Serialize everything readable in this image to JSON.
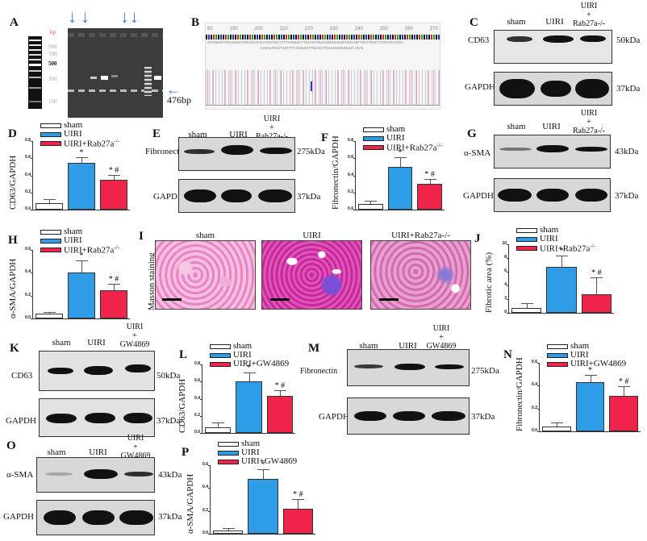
{
  "colors": {
    "sham": "#ffffff",
    "uiri": "#2e9ce6",
    "treat": "#f0234a",
    "arrow": "#4a7bc8",
    "bp_label": "#e0409a"
  },
  "panelA": {
    "label": "A",
    "ladder_unit": "bp",
    "ladder_ticks": [
      "900",
      "700",
      "500",
      "300",
      "100"
    ],
    "band_annotation": "476bp"
  },
  "panelB": {
    "label": "B",
    "ruler": [
      "82",
      "190",
      "200",
      "210",
      "220",
      "230",
      "240",
      "250",
      "260",
      "270"
    ],
    "sequence_top": "GCTGGGATTGCAGGCATGCACCACCATGCCTGCTTTTACGGGCTTGCACATGAAAGGAGAAGGTGACAGTTGCTTCACTTGACTCCTGCC",
    "sequence_bottom": "CACCATGCCTGCTTTTACGGGCTTGCACATGAAAGGAGAAdel/0/0"
  },
  "panelC": {
    "label": "C",
    "lanes": [
      "sham",
      "UIRI",
      "UIRI\n+\nRab27a-/-"
    ],
    "rows": [
      {
        "name": "CD63",
        "kda": "50kDa"
      },
      {
        "name": "GAPDH",
        "kda": "37kDa"
      }
    ]
  },
  "panelE": {
    "label": "E",
    "lanes": [
      "sham",
      "UIRI",
      "UIRI\n+\nRab27a-/-"
    ],
    "rows": [
      {
        "name": "Fibronectin",
        "kda": "275kDa"
      },
      {
        "name": "GAPDH",
        "kda": "37kDa"
      }
    ]
  },
  "panelG": {
    "label": "G",
    "lanes": [
      "sham",
      "UIRI",
      "UIRI\n+\nRab27a-/-"
    ],
    "rows": [
      {
        "name": "α-SMA",
        "kda": "43kDa"
      },
      {
        "name": "GAPDH",
        "kda": "37kDa"
      }
    ]
  },
  "panelI": {
    "label": "I",
    "row_label": "Masson staining",
    "images": [
      "sham",
      "UIRI",
      "UIRI+Rab27a-/-"
    ]
  },
  "panelK": {
    "label": "K",
    "lanes": [
      "sham",
      "UIRI",
      "UIRI\n+\nGW4869"
    ],
    "rows": [
      {
        "name": "CD63",
        "kda": "50kDa"
      },
      {
        "name": "GAPDH",
        "kda": "37kDa"
      }
    ]
  },
  "panelM": {
    "label": "M",
    "lanes": [
      "sham",
      "UIRI",
      "UIRI\n+\nGW4869"
    ],
    "rows": [
      {
        "name": "Fibronectin",
        "kda": "275kDa"
      },
      {
        "name": "GAPDH",
        "kda": "37kDa"
      }
    ]
  },
  "panelO": {
    "label": "O",
    "lanes": [
      "sham",
      "UIRI",
      "UIRI\n+\nGW4869"
    ],
    "rows": [
      {
        "name": "α-SMA",
        "kda": "43kDa"
      },
      {
        "name": "GAPDH",
        "kda": "37kDa"
      }
    ]
  },
  "chart_data": [
    {
      "panel": "D",
      "type": "bar",
      "categories": [
        "sham",
        "UIRI",
        "UIRI+Rab27a-/-"
      ],
      "values": [
        0.08,
        0.55,
        0.35
      ],
      "errors": [
        0.03,
        0.05,
        0.05
      ],
      "annotations": [
        "",
        "*",
        "* #"
      ],
      "ylabel": "CD63/GAPDH",
      "ylim": [
        0,
        0.8
      ],
      "yticks": [
        "0.0",
        "0.2",
        "0.4",
        "0.6",
        "0.8"
      ],
      "legend": [
        "sham",
        "UIRI",
        "UIRI+Rab27a-/-"
      ],
      "legend_position": "top"
    },
    {
      "panel": "F",
      "type": "bar",
      "categories": [
        "sham",
        "UIRI",
        "UIRI+Rab27a-/-"
      ],
      "values": [
        0.07,
        0.5,
        0.3
      ],
      "errors": [
        0.02,
        0.1,
        0.05
      ],
      "annotations": [
        "",
        "*",
        "* #"
      ],
      "ylabel": "Fibronectin/GAPDH",
      "ylim": [
        0,
        0.8
      ],
      "yticks": [
        "0.0",
        "0.2",
        "0.4",
        "0.6",
        "0.8"
      ],
      "legend": [
        "sham",
        "UIRI",
        "UIRI+Rab27a-/-"
      ],
      "legend_position": "top"
    },
    {
      "panel": "H",
      "type": "bar",
      "categories": [
        "sham",
        "UIRI",
        "UIRI+Rab27a-/-"
      ],
      "values": [
        0.04,
        0.4,
        0.25
      ],
      "errors": [
        0.01,
        0.1,
        0.05
      ],
      "annotations": [
        "",
        "*",
        "* #"
      ],
      "ylabel": "α-SMA/GAPDH",
      "ylim": [
        0,
        0.6
      ],
      "yticks": [
        "0.0",
        "0.2",
        "0.4",
        "0.6"
      ],
      "legend": [
        "sham",
        "UIRI",
        "UIRI+Rab27a-/-"
      ],
      "legend_position": "top"
    },
    {
      "panel": "J",
      "type": "bar",
      "categories": [
        "sham",
        "UIRI",
        "UIRI+Rab27a-/-"
      ],
      "values": [
        0.7,
        6.7,
        2.7
      ],
      "errors": [
        0.6,
        1.5,
        2.4
      ],
      "annotations": [
        "",
        "*",
        "* #"
      ],
      "ylabel": "Fibrotic area (%)",
      "ylim": [
        0,
        10
      ],
      "yticks": [
        "0",
        "2",
        "4",
        "6",
        "8",
        "10"
      ],
      "legend": [
        "sham",
        "UIRI",
        "UIRI+Rab27a-/-"
      ],
      "legend_position": "top"
    },
    {
      "panel": "L",
      "type": "bar",
      "categories": [
        "sham",
        "UIRI",
        "UIRI+GW4869"
      ],
      "values": [
        0.07,
        0.6,
        0.43
      ],
      "errors": [
        0.04,
        0.1,
        0.06
      ],
      "annotations": [
        "",
        "*",
        "* #"
      ],
      "ylabel": "CD63/GAPDH",
      "ylim": [
        0,
        0.8
      ],
      "yticks": [
        "0.0",
        "0.2",
        "0.4",
        "0.6",
        "0.8"
      ],
      "legend": [
        "sham",
        "UIRI",
        "UIRI+GW4869"
      ],
      "legend_position": "top"
    },
    {
      "panel": "N",
      "type": "bar",
      "categories": [
        "sham",
        "UIRI",
        "UIRI+GW4869"
      ],
      "values": [
        0.04,
        0.43,
        0.31
      ],
      "errors": [
        0.03,
        0.06,
        0.08
      ],
      "annotations": [
        "",
        "*",
        "* #"
      ],
      "ylabel": "Fibronectin/GAPDH",
      "ylim": [
        0,
        0.6
      ],
      "yticks": [
        "0.0",
        "0.2",
        "0.4",
        "0.6"
      ],
      "legend": [
        "sham",
        "UIRI",
        "UIRI+GW4869"
      ],
      "legend_position": "top"
    },
    {
      "panel": "P",
      "type": "bar",
      "categories": [
        "sham",
        "UIRI",
        "UIRI+GW4869"
      ],
      "values": [
        0.03,
        0.48,
        0.22
      ],
      "errors": [
        0.01,
        0.08,
        0.08
      ],
      "annotations": [
        "",
        "*",
        "* #"
      ],
      "ylabel": "α-SMA/GAPDH",
      "ylim": [
        0,
        0.6
      ],
      "yticks": [
        "0.0",
        "0.2",
        "0.4",
        "0.6"
      ],
      "legend": [
        "sham",
        "UIRI",
        "UIRI+GW4869"
      ],
      "legend_position": "top"
    }
  ]
}
